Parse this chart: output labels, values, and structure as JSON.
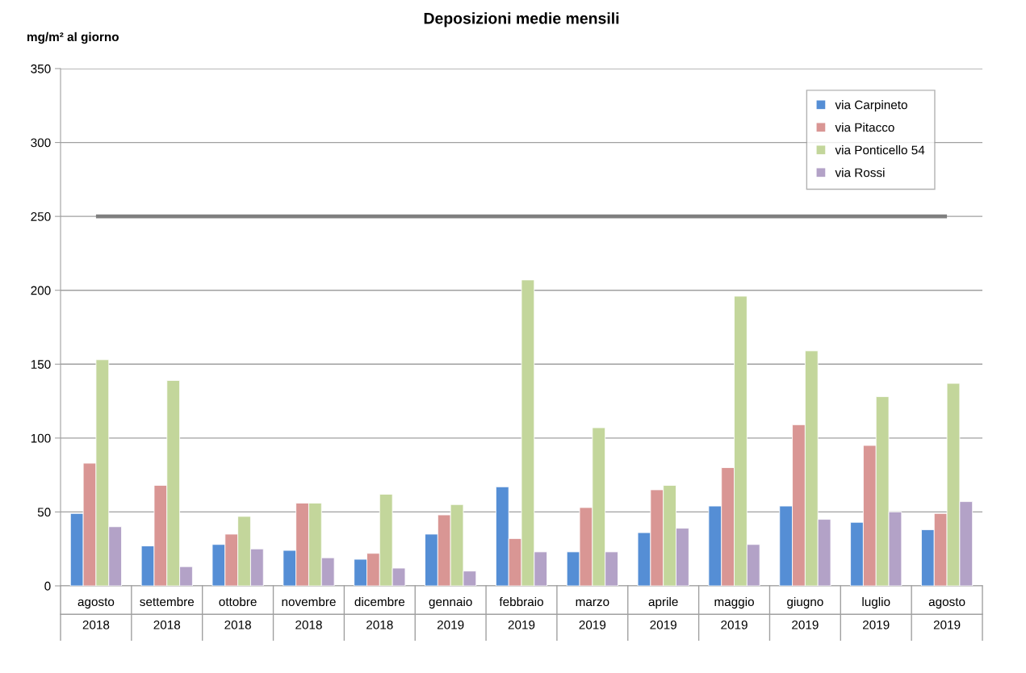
{
  "chart_data": {
    "type": "bar",
    "title": "Deposizioni medie mensili",
    "ylabel": "mg/m² al giorno",
    "categories": [
      "agosto\n2018",
      "settembre\n2018",
      "ottobre\n2018",
      "novembre\n2018",
      "dicembre\n2018",
      "gennaio\n2019",
      "febbraio\n2019",
      "marzo\n2019",
      "aprile\n2019",
      "maggio\n2019",
      "giugno\n2019",
      "luglio\n2019",
      "agosto\n2019"
    ],
    "series": [
      {
        "name": "via Carpineto",
        "color": "#558ed5",
        "values": [
          49,
          27,
          28,
          24,
          18,
          35,
          67,
          23,
          36,
          54,
          54,
          43,
          38
        ]
      },
      {
        "name": "via Pitacco",
        "color": "#d99694",
        "values": [
          83,
          68,
          35,
          56,
          22,
          48,
          32,
          53,
          65,
          80,
          109,
          95,
          49
        ]
      },
      {
        "name": "via Ponticello 54",
        "color": "#c3d69b",
        "values": [
          153,
          139,
          47,
          56,
          62,
          55,
          207,
          107,
          68,
          196,
          159,
          128,
          137
        ]
      },
      {
        "name": "via Rossi",
        "color": "#b3a2c7",
        "values": [
          40,
          13,
          25,
          19,
          12,
          10,
          23,
          23,
          39,
          28,
          45,
          50,
          57
        ]
      }
    ],
    "ref_lines": [
      {
        "axis": "y",
        "value": 250,
        "color": "#7f7f7f"
      }
    ],
    "ylim": [
      0,
      350
    ],
    "yticks": [
      0,
      50,
      100,
      150,
      200,
      250,
      300,
      350
    ],
    "grid": "y",
    "legend": "top right"
  }
}
